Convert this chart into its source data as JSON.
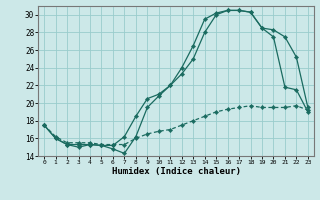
{
  "xlabel": "Humidex (Indice chaleur)",
  "bg_color": "#cce8e8",
  "grid_color": "#99cccc",
  "line_color": "#1a6b60",
  "xlim": [
    -0.5,
    23.5
  ],
  "ylim": [
    14,
    31
  ],
  "xticks": [
    0,
    1,
    2,
    3,
    4,
    5,
    6,
    7,
    8,
    9,
    10,
    11,
    12,
    13,
    14,
    15,
    16,
    17,
    18,
    19,
    20,
    21,
    22,
    23
  ],
  "yticks": [
    14,
    16,
    18,
    20,
    22,
    24,
    26,
    28,
    30
  ],
  "line1_x": [
    0,
    1,
    2,
    3,
    4,
    5,
    6,
    7,
    8,
    9,
    10,
    11,
    12,
    13,
    14,
    15,
    16,
    17,
    18,
    19,
    20,
    21,
    22,
    23
  ],
  "line1_y": [
    17.5,
    16.0,
    15.3,
    15.0,
    15.3,
    15.2,
    14.8,
    14.3,
    16.2,
    19.5,
    20.8,
    22.0,
    23.3,
    25.0,
    28.0,
    30.0,
    30.5,
    30.5,
    30.3,
    28.5,
    27.5,
    21.8,
    21.5,
    19.0
  ],
  "line2_x": [
    0,
    1,
    2,
    3,
    4,
    5,
    6,
    7,
    8,
    9,
    10,
    11,
    12,
    13,
    14,
    15,
    16,
    17,
    18,
    19,
    20,
    21,
    22,
    23
  ],
  "line2_y": [
    17.5,
    16.0,
    15.3,
    15.3,
    15.3,
    15.2,
    15.2,
    16.2,
    18.5,
    20.5,
    21.0,
    22.0,
    24.0,
    26.5,
    29.5,
    30.2,
    30.5,
    30.5,
    30.3,
    28.5,
    28.3,
    27.5,
    25.2,
    19.5
  ],
  "line3_x": [
    0,
    1,
    2,
    3,
    4,
    5,
    6,
    7,
    8,
    9,
    10,
    11,
    12,
    13,
    14,
    15,
    16,
    17,
    18,
    19,
    20,
    21,
    22,
    23
  ],
  "line3_y": [
    17.5,
    16.2,
    15.5,
    15.5,
    15.5,
    15.3,
    15.3,
    15.3,
    16.0,
    16.5,
    16.8,
    17.0,
    17.5,
    18.0,
    18.5,
    19.0,
    19.3,
    19.5,
    19.7,
    19.5,
    19.5,
    19.5,
    19.7,
    19.2
  ]
}
